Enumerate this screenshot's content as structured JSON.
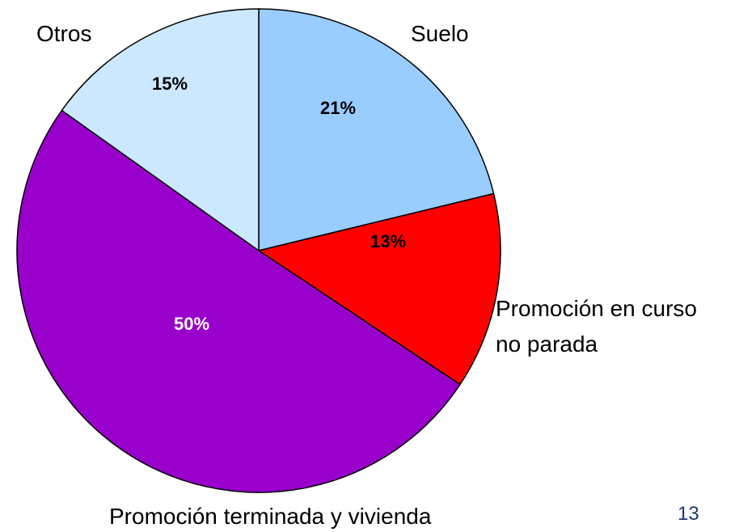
{
  "chart_data": {
    "type": "pie",
    "categories": [
      "Suelo",
      "Promoción en curso\nno parada",
      "Promoción terminada y vivienda",
      "Otros"
    ],
    "values": [
      21,
      13,
      50,
      15
    ],
    "value_labels": [
      "21%",
      "13%",
      "50%",
      "15%"
    ],
    "colors": [
      "#99ccff",
      "#ff0000",
      "#9900cc",
      "#cce8ff"
    ],
    "label_colors": [
      "#000000",
      "#000000",
      "#ffffff",
      "#000000"
    ]
  },
  "page_number": "13"
}
